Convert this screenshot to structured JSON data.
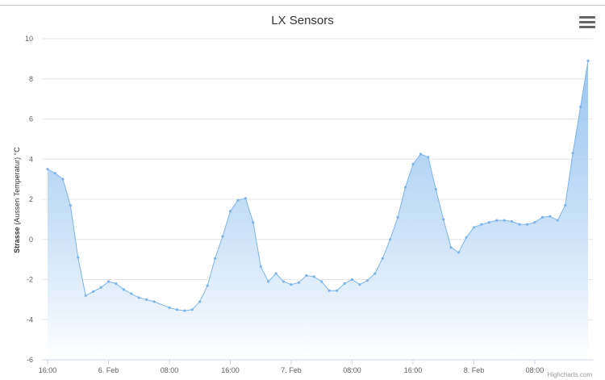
{
  "title": "LX Sensors",
  "credits": "Highcharts.com",
  "menu_icon": "hamburger-menu-icon",
  "colors": {
    "line": "#7cb5ec",
    "area_top": "#7cb5ec",
    "area_bottom": "#ffffff",
    "grid": "#e6e6e6",
    "top_rule": "#c9c9c9"
  },
  "chart_data": {
    "type": "area",
    "title": "LX Sensors",
    "ylabel_bold": "Strasse",
    "ylabel_rest": " (Aussen Temperatur) °C",
    "ylim": [
      -6,
      10
    ],
    "yticks": [
      -6,
      -4,
      -2,
      0,
      2,
      4,
      6,
      8,
      10
    ],
    "ytick_labels": [
      "-6",
      "-4",
      "-2",
      "0",
      "2",
      "4",
      "6",
      "8",
      "10"
    ],
    "grid": true,
    "xlim_hours": [
      11.3,
      59.7
    ],
    "xticks": [
      {
        "h": 16,
        "label": "16:00"
      },
      {
        "h": 24,
        "label": "6. Feb"
      },
      {
        "h": 32,
        "label": "08:00"
      },
      {
        "h": 40,
        "label": "16:00"
      },
      {
        "h": 48,
        "label": "7. Feb"
      },
      {
        "h": 56,
        "label": "08:00"
      },
      {
        "h": 64,
        "label": "16:00"
      },
      {
        "h": 72,
        "label": "8. Feb"
      },
      {
        "h": 80,
        "label": "08:00"
      }
    ],
    "series": [
      {
        "x": [
          12,
          13,
          14,
          15,
          16,
          17,
          18,
          19,
          20,
          21,
          22,
          23,
          24,
          25,
          26,
          28,
          29,
          30,
          31,
          32,
          33,
          34,
          35,
          36,
          37,
          38,
          39,
          40,
          41,
          42,
          43,
          44,
          45,
          46,
          47,
          48,
          49,
          50,
          51,
          52,
          53,
          54,
          55,
          56,
          57,
          58,
          59,
          60,
          61,
          62,
          63,
          64,
          65,
          66,
          67,
          68,
          69,
          70,
          71,
          72,
          73,
          74,
          75,
          76,
          77,
          78,
          79,
          80,
          81,
          82,
          83
        ],
        "values": [
          3.5,
          3.3,
          3.0,
          1.7,
          -0.9,
          -2.8,
          -2.6,
          -2.4,
          -2.1,
          -2.2,
          -2.5,
          -2.7,
          -2.9,
          -3.0,
          -3.1,
          -3.4,
          -3.5,
          -3.55,
          -3.5,
          -3.1,
          -2.3,
          -0.95,
          0.15,
          1.4,
          1.95,
          2.05,
          0.85,
          -1.35,
          -2.1,
          -1.7,
          -2.1,
          -2.25,
          -2.15,
          -1.8,
          -1.85,
          -2.1,
          -2.55,
          -2.55,
          -2.2,
          -2.0,
          -2.25,
          -2.05,
          -1.7,
          -0.95,
          0.0,
          1.1,
          2.6,
          3.75,
          4.25,
          4.1,
          2.5,
          1.0,
          -0.4,
          -0.65,
          0.1,
          0.6,
          0.75,
          0.85,
          0.95,
          0.95,
          0.9,
          0.75,
          0.75,
          0.85,
          1.1,
          1.15,
          0.95,
          1.7,
          4.3,
          6.6,
          8.9
        ]
      }
    ]
  }
}
